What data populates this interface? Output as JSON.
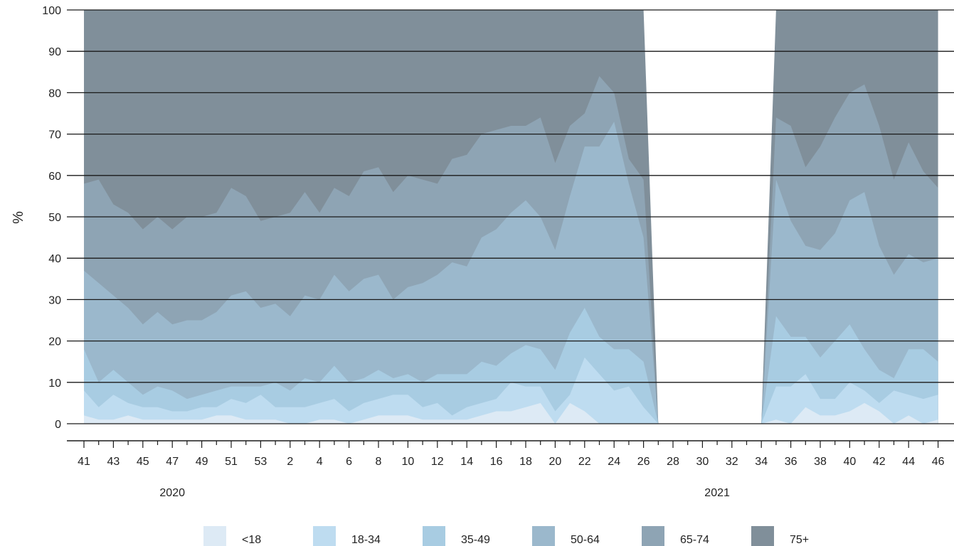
{
  "chart_data": {
    "type": "area",
    "stacked": true,
    "normalized_percent": true,
    "ylabel": "%",
    "ylim": [
      0,
      100
    ],
    "yticks": [
      0,
      10,
      20,
      30,
      40,
      50,
      60,
      70,
      80,
      90,
      100
    ],
    "grid": true,
    "legend_position": "bottom",
    "years": [
      {
        "label": "2020",
        "at_week_index": 6
      },
      {
        "label": "2021",
        "at_week_index": 43
      }
    ],
    "x": [
      "41",
      "42",
      "43",
      "44",
      "45",
      "46",
      "47",
      "48",
      "49",
      "50",
      "51",
      "52",
      "53",
      "1",
      "2",
      "3",
      "4",
      "5",
      "6",
      "7",
      "8",
      "9",
      "10",
      "11",
      "12",
      "13",
      "14",
      "15",
      "16",
      "17",
      "18",
      "19",
      "20",
      "21",
      "22",
      "23",
      "24",
      "25",
      "26",
      "27",
      "28",
      "29",
      "30",
      "31",
      "32",
      "33",
      "34",
      "35",
      "36",
      "37",
      "38",
      "39",
      "40",
      "41",
      "42",
      "43",
      "44",
      "45",
      "46"
    ],
    "x_tick_labels_shown": [
      "41",
      "43",
      "45",
      "47",
      "49",
      "51",
      "53",
      "2",
      "4",
      "6",
      "8",
      "10",
      "12",
      "14",
      "16",
      "18",
      "20",
      "22",
      "24",
      "26",
      "28",
      "30",
      "32",
      "34",
      "36",
      "38",
      "40",
      "42",
      "44",
      "46"
    ],
    "series_cumulative_top": [
      {
        "name": "<18",
        "color": "#ddeaf5",
        "values": [
          2,
          1,
          1,
          2,
          1,
          1,
          1,
          1,
          1,
          2,
          2,
          1,
          1,
          1,
          0,
          0,
          1,
          1,
          0,
          1,
          2,
          2,
          2,
          1,
          1,
          1,
          1,
          2,
          3,
          3,
          4,
          5,
          0,
          5,
          3,
          0,
          0,
          0,
          0,
          0,
          null,
          null,
          null,
          null,
          null,
          null,
          0,
          1,
          0,
          4,
          2,
          2,
          3,
          5,
          3,
          0,
          2,
          0,
          1
        ]
      },
      {
        "name": "18-34",
        "color": "#bedcf0",
        "values": [
          8,
          4,
          7,
          5,
          4,
          4,
          3,
          3,
          4,
          4,
          6,
          5,
          7,
          4,
          4,
          4,
          5,
          6,
          3,
          5,
          6,
          7,
          7,
          4,
          5,
          2,
          4,
          5,
          6,
          10,
          9,
          9,
          3,
          7,
          16,
          12,
          8,
          9,
          4,
          0,
          null,
          null,
          null,
          null,
          null,
          null,
          0,
          9,
          9,
          12,
          6,
          6,
          10,
          8,
          5,
          8,
          7,
          6,
          7
        ]
      },
      {
        "name": "35-49",
        "color": "#a8cce2",
        "values": [
          18,
          10,
          13,
          10,
          7,
          9,
          8,
          6,
          7,
          8,
          9,
          9,
          9,
          10,
          8,
          11,
          10,
          14,
          10,
          11,
          13,
          11,
          12,
          10,
          12,
          12,
          12,
          15,
          14,
          17,
          19,
          18,
          13,
          22,
          28,
          21,
          18,
          18,
          15,
          0,
          null,
          null,
          null,
          null,
          null,
          null,
          0,
          26,
          21,
          21,
          16,
          20,
          24,
          18,
          13,
          11,
          18,
          18,
          15
        ]
      },
      {
        "name": "50-64",
        "color": "#9bb8cc",
        "values": [
          37,
          34,
          31,
          28,
          24,
          27,
          24,
          25,
          25,
          27,
          31,
          32,
          28,
          29,
          26,
          31,
          30,
          36,
          32,
          35,
          36,
          30,
          33,
          34,
          36,
          39,
          38,
          45,
          47,
          51,
          54,
          50,
          42,
          55,
          67,
          67,
          73,
          58,
          45,
          0,
          null,
          null,
          null,
          null,
          null,
          null,
          0,
          59,
          49,
          43,
          42,
          46,
          54,
          56,
          43,
          36,
          41,
          39,
          40
        ]
      },
      {
        "name": "65-74",
        "color": "#8ea4b4",
        "values": [
          58,
          59,
          53,
          51,
          47,
          50,
          47,
          50,
          50,
          51,
          57,
          55,
          49,
          50,
          51,
          56,
          51,
          57,
          55,
          61,
          62,
          56,
          60,
          59,
          58,
          64,
          65,
          70,
          71,
          72,
          72,
          74,
          63,
          72,
          75,
          84,
          80,
          64,
          59,
          0,
          null,
          null,
          null,
          null,
          null,
          null,
          0,
          74,
          72,
          62,
          67,
          74,
          80,
          82,
          72,
          59,
          68,
          61,
          57
        ]
      },
      {
        "name": "75+",
        "color": "#808f9a",
        "values": [
          100,
          100,
          100,
          100,
          100,
          100,
          100,
          100,
          100,
          100,
          100,
          100,
          100,
          100,
          100,
          100,
          100,
          100,
          100,
          100,
          100,
          100,
          100,
          100,
          100,
          100,
          100,
          100,
          100,
          100,
          100,
          100,
          100,
          100,
          100,
          100,
          100,
          100,
          100,
          0,
          null,
          null,
          null,
          null,
          null,
          null,
          0,
          100,
          100,
          100,
          100,
          100,
          100,
          100,
          100,
          100,
          100,
          100,
          100
        ]
      }
    ]
  }
}
